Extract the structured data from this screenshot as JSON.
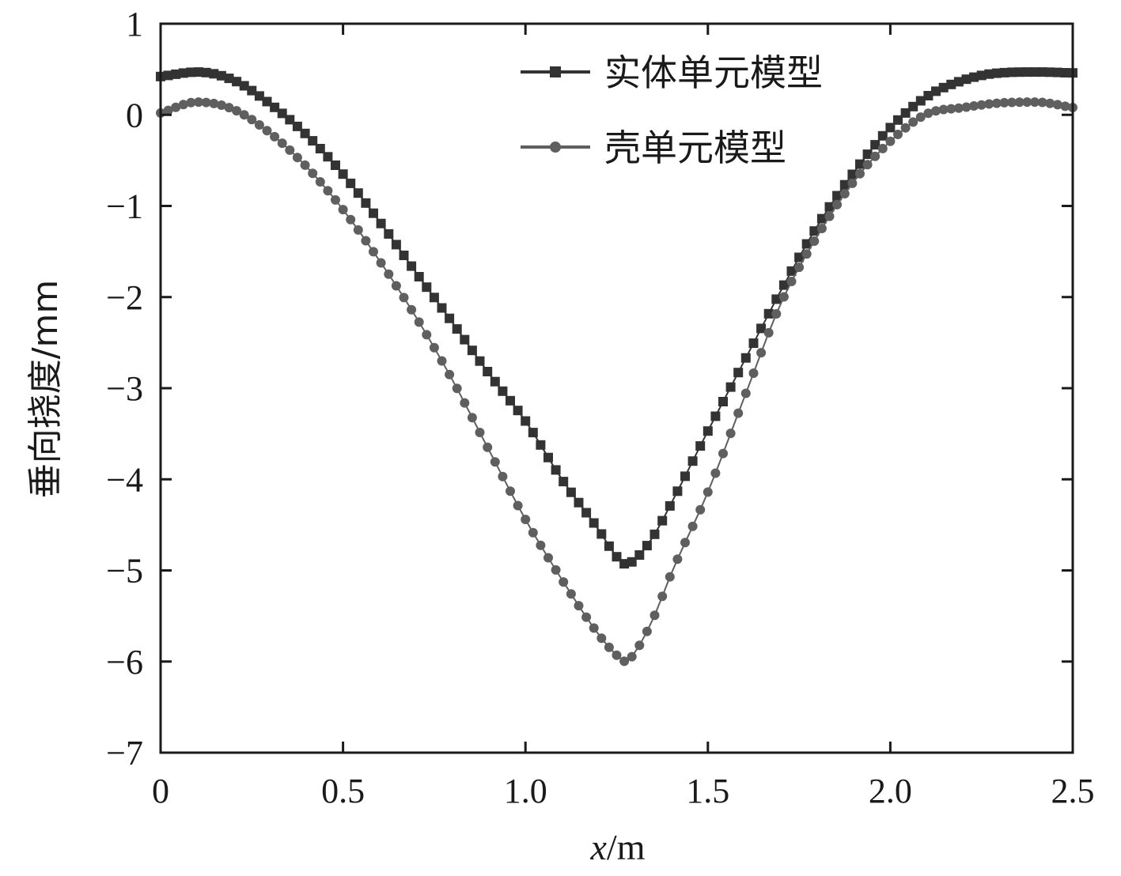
{
  "chart_data": {
    "type": "line",
    "xlabel_var": "x",
    "xlabel_unit": "/m",
    "ylabel": "垂向挠度/mm",
    "xlim": [
      0,
      2.5
    ],
    "ylim": [
      -7,
      1
    ],
    "xticks": [
      "0",
      "0.5",
      "1.0",
      "1.5",
      "2.0",
      "2.5"
    ],
    "yticks": [
      "1",
      "0",
      "−1",
      "−2",
      "−3",
      "−4",
      "−5",
      "−6",
      "−7"
    ],
    "legend_position": "top-right",
    "grid": false,
    "series": [
      {
        "name": "实体单元模型",
        "marker": "square",
        "color": "#333333",
        "x": [
          0,
          0.1,
          0.2,
          0.3,
          0.4,
          0.5,
          0.6,
          0.7,
          0.8,
          0.9,
          1.0,
          1.1,
          1.2,
          1.25,
          1.275,
          1.3,
          1.35,
          1.4,
          1.5,
          1.6,
          1.7,
          1.8,
          1.9,
          2.0,
          2.1,
          2.2,
          2.3,
          2.4,
          2.5
        ],
        "y": [
          0.42,
          0.47,
          0.38,
          0.12,
          -0.22,
          -0.65,
          -1.17,
          -1.73,
          -2.28,
          -2.84,
          -3.36,
          -4.0,
          -4.55,
          -4.85,
          -4.93,
          -4.88,
          -4.63,
          -4.26,
          -3.47,
          -2.7,
          -1.93,
          -1.22,
          -0.63,
          -0.14,
          0.2,
          0.38,
          0.46,
          0.47,
          0.46
        ]
      },
      {
        "name": "壳单元模型",
        "marker": "circle",
        "color": "#5f5f5f",
        "x": [
          0,
          0.1,
          0.2,
          0.3,
          0.4,
          0.5,
          0.6,
          0.7,
          0.8,
          0.9,
          1.0,
          1.1,
          1.2,
          1.25,
          1.275,
          1.3,
          1.35,
          1.4,
          1.5,
          1.6,
          1.7,
          1.8,
          1.9,
          2.0,
          2.1,
          2.2,
          2.3,
          2.4,
          2.5
        ],
        "y": [
          0.02,
          0.14,
          0.06,
          -0.2,
          -0.57,
          -1.04,
          -1.6,
          -2.22,
          -2.91,
          -3.68,
          -4.44,
          -5.1,
          -5.7,
          -5.93,
          -6.0,
          -5.9,
          -5.53,
          -5.03,
          -4.14,
          -3.1,
          -2.07,
          -1.33,
          -0.73,
          -0.29,
          0.01,
          0.08,
          0.13,
          0.14,
          0.08
        ]
      }
    ]
  }
}
